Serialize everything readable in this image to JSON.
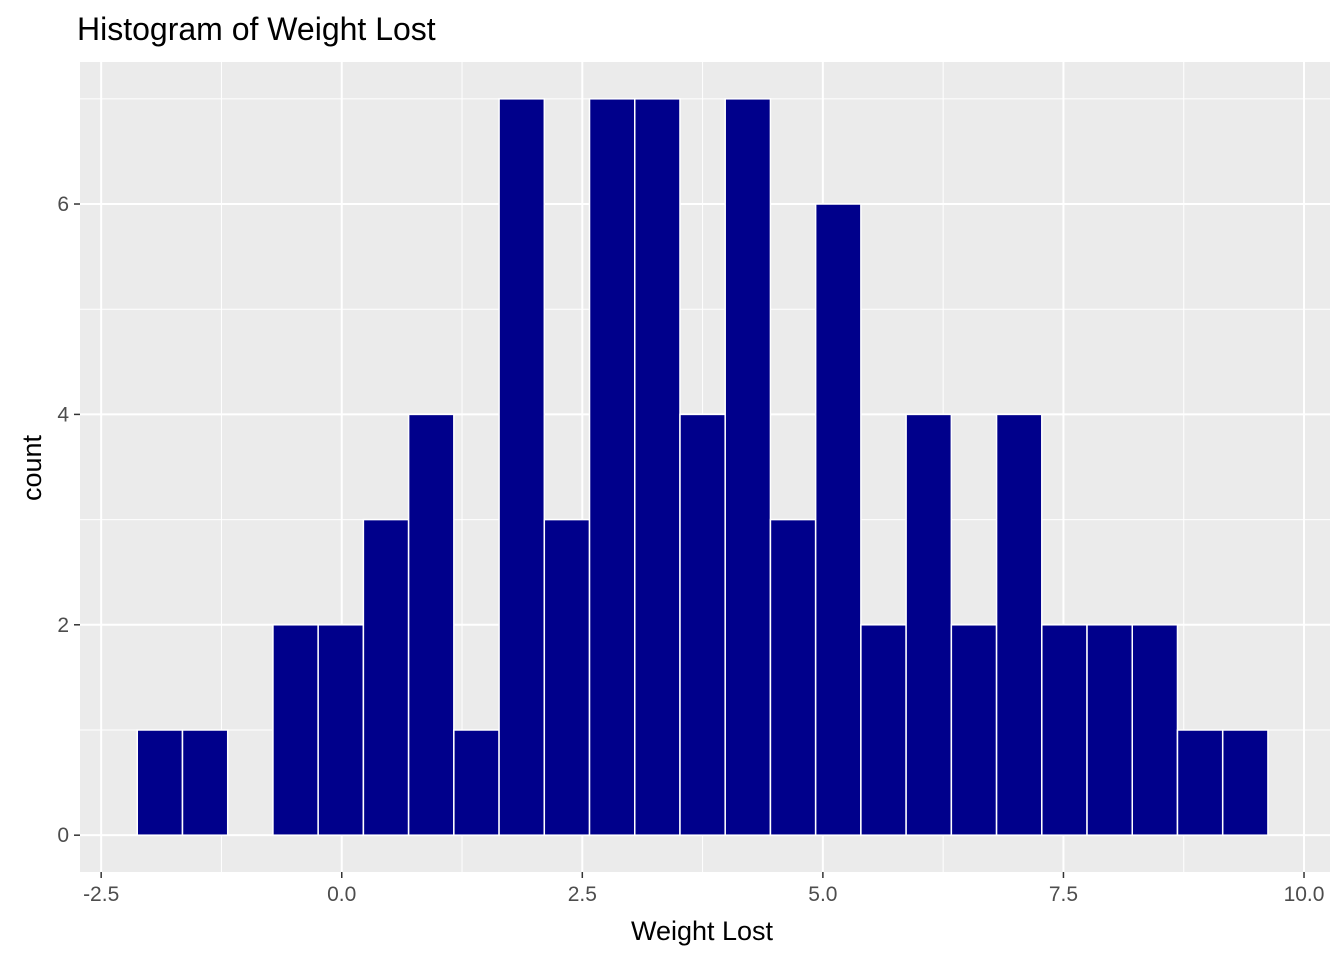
{
  "chart_data": {
    "type": "bar",
    "title": "Histogram of Weight Lost",
    "xlabel": "Weight Lost",
    "ylabel": "count",
    "xlim": [
      -2.72,
      10.27
    ],
    "ylim": [
      -0.35,
      7.35
    ],
    "x_ticks": [
      {
        "value": -2.5,
        "label": "-2.5"
      },
      {
        "value": 0,
        "label": "0.0"
      },
      {
        "value": 2.5,
        "label": "2.5"
      },
      {
        "value": 5,
        "label": "5.0"
      },
      {
        "value": 7.5,
        "label": "7.5"
      },
      {
        "value": 10,
        "label": "10.0"
      }
    ],
    "y_ticks": [
      {
        "value": 0,
        "label": "0"
      },
      {
        "value": 2,
        "label": "2"
      },
      {
        "value": 4,
        "label": "4"
      },
      {
        "value": 6,
        "label": "6"
      }
    ],
    "x_minor_ticks": [
      -1.25,
      1.25,
      3.75,
      6.25,
      8.75
    ],
    "y_minor_ticks": [
      1,
      3,
      5,
      7
    ],
    "bin_width": 0.47,
    "bins": [
      {
        "center": -1.89,
        "count": 1
      },
      {
        "center": -1.42,
        "count": 1
      },
      {
        "center": -0.95,
        "count": 0
      },
      {
        "center": -0.48,
        "count": 2
      },
      {
        "center": -0.01,
        "count": 2
      },
      {
        "center": 0.46,
        "count": 3
      },
      {
        "center": 0.93,
        "count": 4
      },
      {
        "center": 1.4,
        "count": 1
      },
      {
        "center": 1.87,
        "count": 7
      },
      {
        "center": 2.34,
        "count": 3
      },
      {
        "center": 2.81,
        "count": 7
      },
      {
        "center": 3.28,
        "count": 7
      },
      {
        "center": 3.75,
        "count": 4
      },
      {
        "center": 4.22,
        "count": 7
      },
      {
        "center": 4.69,
        "count": 3
      },
      {
        "center": 5.16,
        "count": 6
      },
      {
        "center": 5.63,
        "count": 2
      },
      {
        "center": 6.1,
        "count": 4
      },
      {
        "center": 6.57,
        "count": 2
      },
      {
        "center": 7.04,
        "count": 4
      },
      {
        "center": 7.51,
        "count": 2
      },
      {
        "center": 7.98,
        "count": 2
      },
      {
        "center": 8.45,
        "count": 2
      },
      {
        "center": 8.92,
        "count": 1
      },
      {
        "center": 9.39,
        "count": 1
      }
    ],
    "grid": true,
    "colors": {
      "bar_fill": "#00008B",
      "bar_outline": "#ffffff",
      "panel_background": "#EBEBEB",
      "grid": "#ffffff"
    }
  }
}
